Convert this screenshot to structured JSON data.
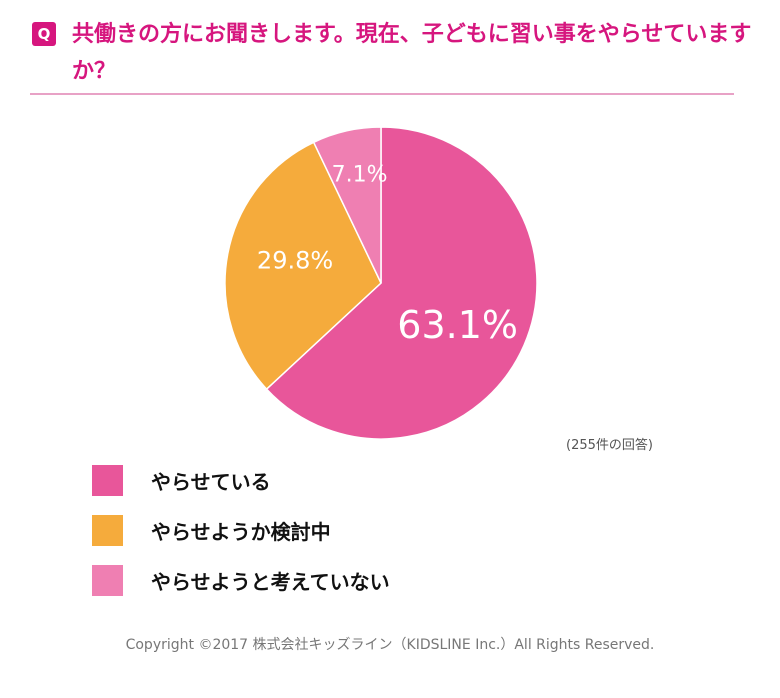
{
  "header": {
    "badge": "Q",
    "question": "共働きの方にお聞きします。現在、子どもに習い事をやらせていますか？"
  },
  "chart_data": {
    "type": "pie",
    "title": "",
    "slices": [
      {
        "label": "やらせている",
        "value": 63.1,
        "display": "63.1%",
        "color": "#e8569a"
      },
      {
        "label": "やらせようか検討中",
        "value": 29.8,
        "display": "29.8%",
        "color": "#f5ab3c"
      },
      {
        "label": "やらせようと考えていない",
        "value": 7.1,
        "display": "7.1%",
        "color": "#ef7fb2"
      }
    ],
    "start_angle_deg": 0,
    "direction": "clockwise",
    "note": "(255件の回答)",
    "legend_position": "bottom-left"
  },
  "footer": {
    "copyright": "Copyright ©2017 株式会社キッズライン（KIDSLINE Inc.）All Rights Reserved."
  },
  "colors": {
    "accent": "#d6167e",
    "rule": "#e8a2c6",
    "slice_border": "#ffffff"
  }
}
